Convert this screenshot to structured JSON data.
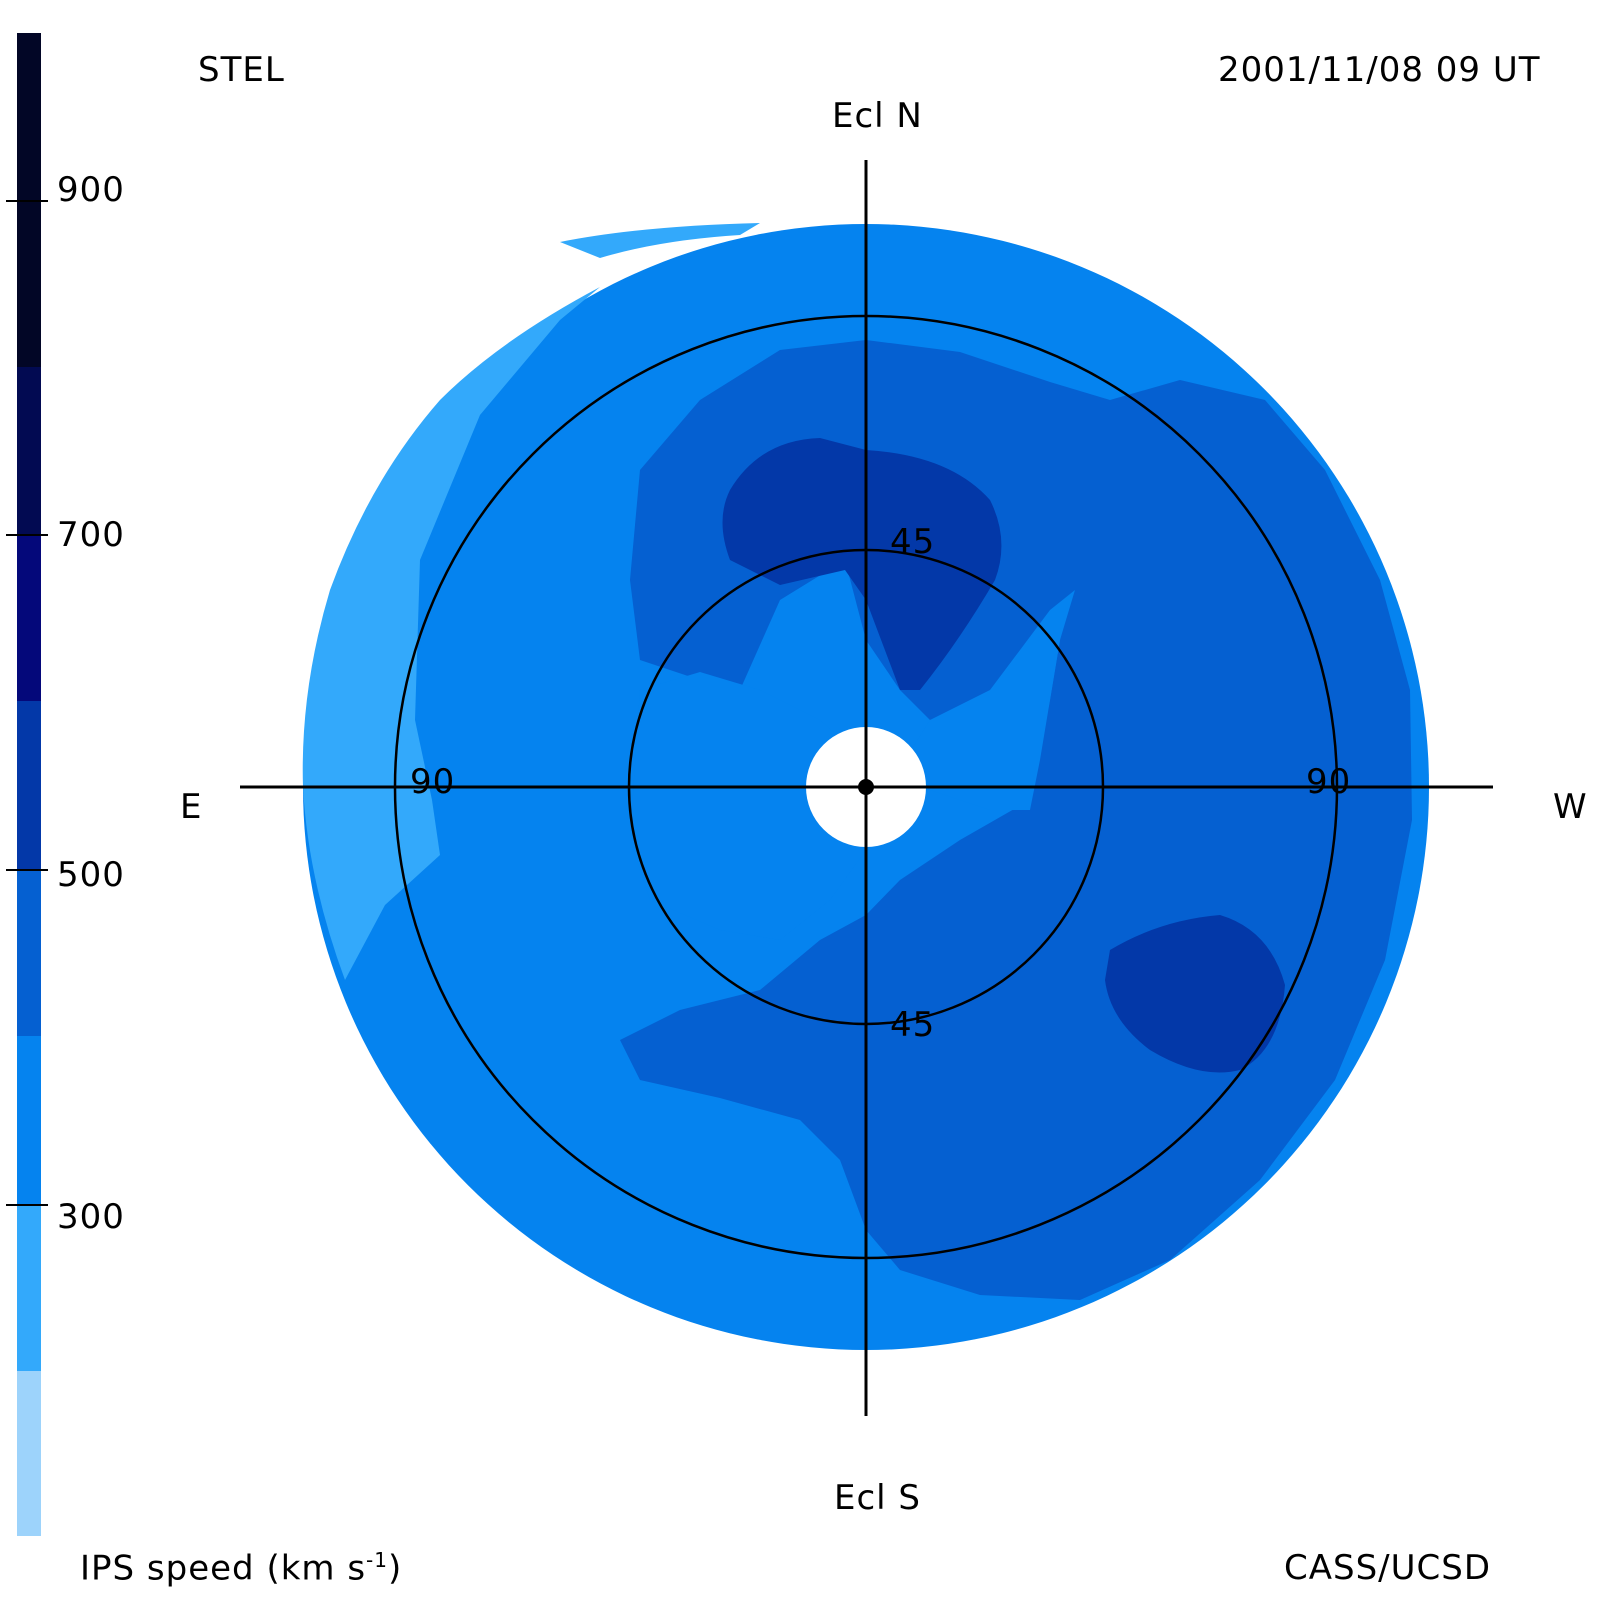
{
  "header": {
    "left_label": "STEL",
    "timestamp": "2001/11/08 09 UT"
  },
  "footer": {
    "colorbar_title": "IPS speed (km s",
    "colorbar_title_exp": "-1",
    "colorbar_title_close": ")",
    "credit": "CASS/UCSD"
  },
  "directions": {
    "north": "Ecl N",
    "south": "Ecl S",
    "east": "E",
    "west": "W"
  },
  "ring_labels": {
    "inner_top": "45",
    "inner_bottom": "45",
    "outer_left": "90",
    "outer_right": "90"
  },
  "colorbar": {
    "tick_labels": [
      "900",
      "700",
      "500",
      "300"
    ],
    "segments": [
      "#9dd3fb",
      "#33a9fb",
      "#0583ef",
      "#0560d1",
      "#0338a8",
      "#04087a",
      "#020a52",
      "#020626"
    ]
  },
  "speed_colors": {
    "very_slow": "#33a9fb",
    "slow": "#0583ef",
    "medium": "#0560d1",
    "fast": "#0338a8"
  }
}
